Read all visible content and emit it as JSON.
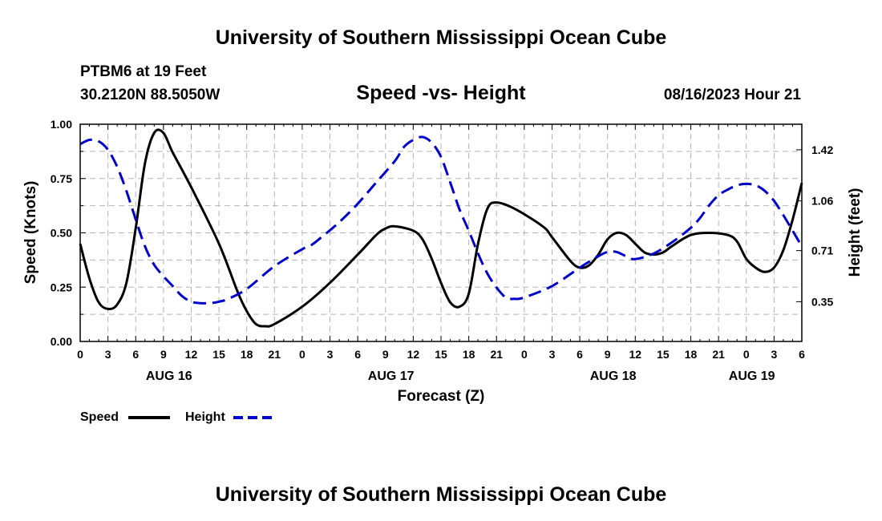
{
  "header": {
    "title": "University of Southern Mississippi Ocean Cube",
    "station": "PTBM6 at 19 Feet",
    "location": "30.2120N  88.5050W",
    "datetime": "08/16/2023 Hour 21",
    "footer_title": "University of Southern Mississippi Ocean Cube"
  },
  "chart_data": {
    "type": "line",
    "title": "Speed -vs- Height",
    "xlabel": "Forecast (Z)",
    "ylabel_left": "Speed (Knots)",
    "ylabel_right": "Height (feet)",
    "x_unit": "hours since 2023-08-16 00Z",
    "xlim": [
      0,
      78
    ],
    "ylim_left": [
      0,
      1.0
    ],
    "ylim_right": [
      0.07,
      1.6
    ],
    "grid": true,
    "x_tick_values": [
      0,
      3,
      6,
      9,
      12,
      15,
      18,
      21,
      24,
      27,
      30,
      33,
      36,
      39,
      42,
      45,
      48,
      51,
      54,
      57,
      60,
      63,
      66,
      69,
      72,
      75,
      78
    ],
    "x_tick_labels": [
      "0",
      "3",
      "6",
      "9",
      "12",
      "15",
      "18",
      "21",
      "0",
      "3",
      "6",
      "9",
      "12",
      "15",
      "18",
      "21",
      "0",
      "3",
      "6",
      "9",
      "12",
      "15",
      "18",
      "21",
      "0",
      "3",
      "6"
    ],
    "date_labels": [
      {
        "label": "AUG 16",
        "hour": 9.6
      },
      {
        "label": "AUG 17",
        "hour": 33.6
      },
      {
        "label": "AUG 18",
        "hour": 57.6
      },
      {
        "label": "AUG 19",
        "hour": 72.6
      }
    ],
    "y_left_ticks": [
      {
        "value": 0.0,
        "label": "0.00"
      },
      {
        "value": 0.25,
        "label": "0.25"
      },
      {
        "value": 0.5,
        "label": "0.50"
      },
      {
        "value": 0.75,
        "label": "0.75"
      },
      {
        "value": 1.0,
        "label": "1.00"
      }
    ],
    "y_right_ticks": [
      {
        "value": 0.35,
        "label": "0.35"
      },
      {
        "value": 0.71,
        "label": "0.71"
      },
      {
        "value": 1.06,
        "label": "1.06"
      },
      {
        "value": 1.42,
        "label": "1.42"
      }
    ],
    "legend": {
      "position": "bottom-left",
      "entries": [
        "Speed",
        "Height"
      ]
    },
    "series": [
      {
        "name": "Speed",
        "axis": "left",
        "color": "#000000",
        "style": "solid",
        "points": [
          [
            0,
            0.45
          ],
          [
            1,
            0.29
          ],
          [
            2,
            0.18
          ],
          [
            3,
            0.15
          ],
          [
            4,
            0.17
          ],
          [
            5,
            0.27
          ],
          [
            6,
            0.52
          ],
          [
            7,
            0.82
          ],
          [
            8,
            0.96
          ],
          [
            9,
            0.96
          ],
          [
            10,
            0.87
          ],
          [
            12,
            0.71
          ],
          [
            15,
            0.45
          ],
          [
            17,
            0.23
          ],
          [
            18,
            0.14
          ],
          [
            19,
            0.08
          ],
          [
            20,
            0.07
          ],
          [
            21,
            0.08
          ],
          [
            24,
            0.16
          ],
          [
            27,
            0.27
          ],
          [
            30,
            0.4
          ],
          [
            32,
            0.49
          ],
          [
            33,
            0.52
          ],
          [
            34,
            0.53
          ],
          [
            36,
            0.51
          ],
          [
            37,
            0.47
          ],
          [
            38,
            0.38
          ],
          [
            39,
            0.27
          ],
          [
            40,
            0.18
          ],
          [
            41,
            0.16
          ],
          [
            42,
            0.22
          ],
          [
            43,
            0.45
          ],
          [
            44,
            0.61
          ],
          [
            45,
            0.64
          ],
          [
            47,
            0.61
          ],
          [
            50,
            0.53
          ],
          [
            51,
            0.48
          ],
          [
            53,
            0.37
          ],
          [
            54,
            0.34
          ],
          [
            55,
            0.35
          ],
          [
            56,
            0.4
          ],
          [
            57,
            0.47
          ],
          [
            58,
            0.5
          ],
          [
            59,
            0.49
          ],
          [
            60,
            0.45
          ],
          [
            61,
            0.41
          ],
          [
            62,
            0.4
          ],
          [
            63,
            0.41
          ],
          [
            64,
            0.44
          ],
          [
            66,
            0.49
          ],
          [
            68,
            0.5
          ],
          [
            70,
            0.49
          ],
          [
            71,
            0.46
          ],
          [
            72,
            0.38
          ],
          [
            73,
            0.34
          ],
          [
            74,
            0.32
          ],
          [
            75,
            0.34
          ],
          [
            76,
            0.42
          ],
          [
            77,
            0.56
          ],
          [
            78,
            0.73
          ]
        ]
      },
      {
        "name": "Height",
        "axis": "right",
        "color": "#0000cc",
        "style": "dashed",
        "points": [
          [
            0,
            1.46
          ],
          [
            1,
            1.49
          ],
          [
            2,
            1.48
          ],
          [
            3,
            1.42
          ],
          [
            4,
            1.3
          ],
          [
            5,
            1.13
          ],
          [
            6,
            0.93
          ],
          [
            7,
            0.74
          ],
          [
            8,
            0.61
          ],
          [
            9,
            0.53
          ],
          [
            10,
            0.46
          ],
          [
            11,
            0.39
          ],
          [
            12,
            0.35
          ],
          [
            13,
            0.34
          ],
          [
            14,
            0.34
          ],
          [
            15,
            0.35
          ],
          [
            16,
            0.37
          ],
          [
            18,
            0.44
          ],
          [
            21,
            0.6
          ],
          [
            24,
            0.72
          ],
          [
            25,
            0.75
          ],
          [
            26,
            0.8
          ],
          [
            28,
            0.91
          ],
          [
            30,
            1.04
          ],
          [
            32,
            1.19
          ],
          [
            34,
            1.34
          ],
          [
            35,
            1.44
          ],
          [
            36,
            1.49
          ],
          [
            37,
            1.51
          ],
          [
            38,
            1.47
          ],
          [
            39,
            1.37
          ],
          [
            40,
            1.19
          ],
          [
            41,
            1.0
          ],
          [
            42,
            0.85
          ],
          [
            43,
            0.69
          ],
          [
            44,
            0.55
          ],
          [
            45,
            0.45
          ],
          [
            46,
            0.38
          ],
          [
            47,
            0.37
          ],
          [
            48,
            0.38
          ],
          [
            51,
            0.46
          ],
          [
            54,
            0.59
          ],
          [
            56,
            0.67
          ],
          [
            57,
            0.7
          ],
          [
            58,
            0.7
          ],
          [
            59,
            0.67
          ],
          [
            60,
            0.65
          ],
          [
            62,
            0.69
          ],
          [
            64,
            0.77
          ],
          [
            66,
            0.87
          ],
          [
            67,
            0.94
          ],
          [
            68,
            1.03
          ],
          [
            69,
            1.1
          ],
          [
            70,
            1.14
          ],
          [
            71,
            1.17
          ],
          [
            72,
            1.18
          ],
          [
            73,
            1.17
          ],
          [
            74,
            1.13
          ],
          [
            75,
            1.06
          ],
          [
            76,
            0.96
          ],
          [
            77,
            0.85
          ],
          [
            78,
            0.74
          ]
        ]
      }
    ]
  }
}
